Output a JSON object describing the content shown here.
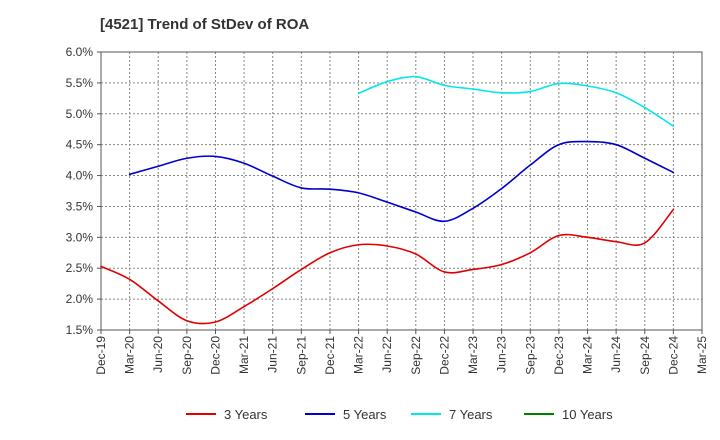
{
  "chart_data": {
    "type": "line",
    "title": "[4521]  Trend of StDev of ROA",
    "xlabel": "",
    "ylabel": "",
    "x_labels": [
      "Dec-19",
      "Mar-20",
      "Jun-20",
      "Sep-20",
      "Dec-20",
      "Mar-21",
      "Jun-21",
      "Sep-21",
      "Dec-21",
      "Mar-22",
      "Jun-22",
      "Sep-22",
      "Dec-22",
      "Mar-23",
      "Jun-23",
      "Sep-23",
      "Dec-23",
      "Mar-24",
      "Jun-24",
      "Sep-24",
      "Dec-24",
      "Mar-25"
    ],
    "y_ticks": [
      "1.5%",
      "2.0%",
      "2.5%",
      "3.0%",
      "3.5%",
      "4.0%",
      "4.5%",
      "5.0%",
      "5.5%",
      "6.0%"
    ],
    "ylim": [
      1.5,
      6.0
    ],
    "y_unit": "%",
    "grid": true,
    "legend_position": "bottom",
    "series": [
      {
        "name": "3 Years",
        "color": "#e00000",
        "values": [
          2.53,
          2.32,
          1.97,
          1.65,
          1.63,
          1.88,
          2.17,
          2.48,
          2.75,
          2.88,
          2.86,
          2.73,
          2.44,
          2.48,
          2.56,
          2.75,
          3.03,
          3.0,
          2.93,
          2.91,
          3.45,
          null
        ]
      },
      {
        "name": "5 Years",
        "color": "#0000cc",
        "values": [
          null,
          4.02,
          4.15,
          4.28,
          4.31,
          4.2,
          3.99,
          3.8,
          3.78,
          3.72,
          3.57,
          3.41,
          3.26,
          3.47,
          3.79,
          4.17,
          4.5,
          4.55,
          4.5,
          4.28,
          4.05,
          null
        ]
      },
      {
        "name": "7 Years",
        "color": "#00e8e8",
        "values": [
          null,
          null,
          null,
          null,
          null,
          null,
          null,
          null,
          null,
          5.33,
          5.52,
          5.6,
          5.46,
          5.4,
          5.34,
          5.36,
          5.49,
          5.45,
          5.34,
          5.1,
          4.8,
          null
        ]
      },
      {
        "name": "10 Years",
        "color": "#008000",
        "values": [
          null,
          null,
          null,
          null,
          null,
          null,
          null,
          null,
          null,
          null,
          null,
          null,
          null,
          null,
          null,
          null,
          null,
          null,
          null,
          null,
          null,
          null
        ]
      }
    ]
  }
}
